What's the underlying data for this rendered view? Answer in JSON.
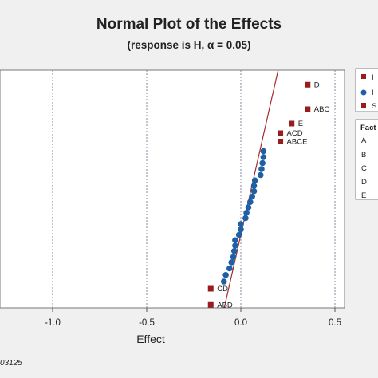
{
  "chart_data": {
    "type": "scatter",
    "title": "Normal Plot of the Effects",
    "subtitle": "(response is H, α = 0.05)",
    "xlabel": "Effect",
    "xlim": [
      -1.65,
      0.52
    ],
    "xticks": [
      -1.0,
      -0.5,
      0.0,
      0.5
    ],
    "xtick_labels": [
      "-1.0",
      "-0.5",
      "0.0",
      "0.5"
    ],
    "grid": "vertical dashed",
    "reference_line": {
      "x": [
        -0.16,
        0.2
      ],
      "z": [
        -2.8,
        2.2
      ]
    },
    "significant": [
      {
        "label": "D",
        "effect": 0.355,
        "z": 1.93
      },
      {
        "label": "ABC",
        "effect": 0.355,
        "z": 1.52
      },
      {
        "label": "E",
        "effect": 0.27,
        "z": 1.28
      },
      {
        "label": "ACD",
        "effect": 0.21,
        "z": 1.12
      },
      {
        "label": "ABCE",
        "effect": 0.21,
        "z": 0.98
      },
      {
        "label": "CD",
        "effect": -0.16,
        "z": -1.48
      },
      {
        "label": "ABD",
        "effect": -0.16,
        "z": -1.75
      }
    ],
    "not_significant": [
      {
        "effect": 0.12,
        "z": 0.82
      },
      {
        "effect": 0.12,
        "z": 0.72
      },
      {
        "effect": 0.115,
        "z": 0.62
      },
      {
        "effect": 0.11,
        "z": 0.52
      },
      {
        "effect": 0.105,
        "z": 0.42
      },
      {
        "effect": 0.075,
        "z": 0.33
      },
      {
        "effect": 0.07,
        "z": 0.24
      },
      {
        "effect": 0.07,
        "z": 0.15
      },
      {
        "effect": 0.06,
        "z": 0.06
      },
      {
        "effect": 0.05,
        "z": -0.03
      },
      {
        "effect": 0.04,
        "z": -0.12
      },
      {
        "effect": 0.03,
        "z": -0.21
      },
      {
        "effect": 0.025,
        "z": -0.3
      },
      {
        "effect": 0.0,
        "z": -0.4
      },
      {
        "effect": 0.0,
        "z": -0.49
      },
      {
        "effect": -0.01,
        "z": -0.58
      },
      {
        "effect": -0.03,
        "z": -0.67
      },
      {
        "effect": -0.03,
        "z": -0.76
      },
      {
        "effect": -0.035,
        "z": -0.85
      },
      {
        "effect": -0.04,
        "z": -0.95
      },
      {
        "effect": -0.05,
        "z": -1.04
      },
      {
        "effect": -0.06,
        "z": -1.14
      },
      {
        "effect": -0.08,
        "z": -1.25
      },
      {
        "effect": -0.09,
        "z": -1.36
      }
    ],
    "legend1_visible_initials": [
      "I",
      "I",
      "S"
    ],
    "legend2_title_visible": "Fact",
    "legend2_entries_visible": [
      "A",
      "B",
      "C",
      "D",
      "E"
    ],
    "footnote": "03125"
  },
  "colors": {
    "significant": "#9b1c1c",
    "not_significant": "#1f5fa6",
    "reference_line": "#a52a2a",
    "background": "#f0f0f0",
    "plot_background": "#ffffff",
    "grid": "#8a8aa0"
  }
}
